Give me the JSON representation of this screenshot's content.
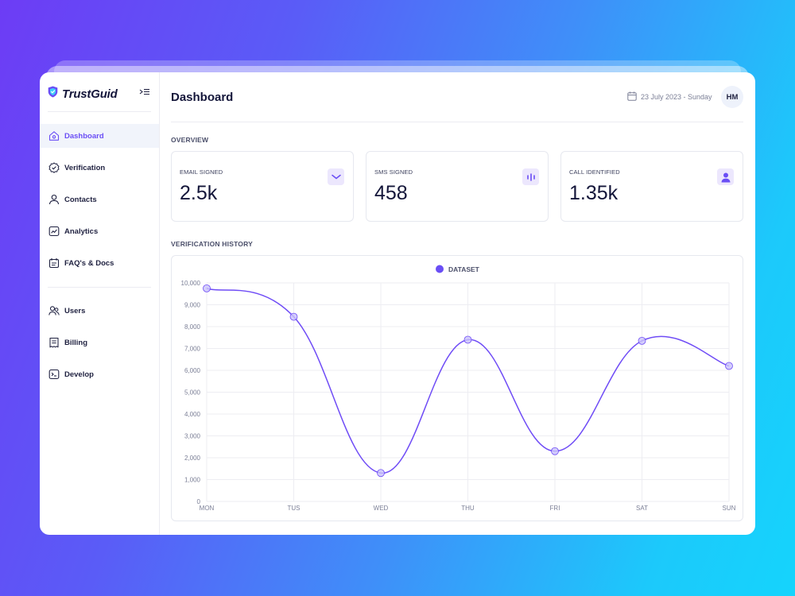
{
  "brand": {
    "name": "TrustGuid"
  },
  "sidebar": {
    "items": [
      {
        "label": "Dashboard",
        "icon": "home-icon",
        "active": true
      },
      {
        "label": "Verification",
        "icon": "verified-badge-icon",
        "active": false
      },
      {
        "label": "Contacts",
        "icon": "user-icon",
        "active": false
      },
      {
        "label": "Analytics",
        "icon": "chart-icon",
        "active": false
      },
      {
        "label": "FAQ's & Docs",
        "icon": "docs-icon",
        "active": false
      }
    ],
    "items2": [
      {
        "label": "Users",
        "icon": "users-icon"
      },
      {
        "label": "Billing",
        "icon": "receipt-icon"
      },
      {
        "label": "Develop",
        "icon": "terminal-icon"
      }
    ]
  },
  "header": {
    "title": "Dashboard",
    "date": "23 July 2023 - Sunday",
    "avatar": "HM"
  },
  "overview": {
    "label": "OVERVIEW",
    "cards": [
      {
        "title": "EMAIL SIGNED",
        "value": "2.5k",
        "icon": "email-icon"
      },
      {
        "title": "SMS SIGNED",
        "value": "458",
        "icon": "sms-icon"
      },
      {
        "title": "CALL IDENTIFIED",
        "value": "1.35k",
        "icon": "person-icon"
      }
    ]
  },
  "history": {
    "label": "VERIFICATION HISTORY"
  },
  "colors": {
    "accent": "#6a4ef5",
    "line": "#6f4cf6",
    "point_fill": "#c9c2fb"
  },
  "chart_data": {
    "type": "line",
    "categories": [
      "MON",
      "TUS",
      "WED",
      "THU",
      "FRI",
      "SAT",
      "SUN"
    ],
    "series": [
      {
        "name": "DATASET",
        "values": [
          9750,
          8450,
          1300,
          7400,
          2300,
          7350,
          6200
        ]
      }
    ],
    "ylim": [
      0,
      10000
    ],
    "yticks": [
      0,
      1000,
      2000,
      3000,
      4000,
      5000,
      6000,
      7000,
      8000,
      9000,
      10000
    ],
    "ytick_labels": [
      "0",
      "1,000",
      "2,000",
      "3,000",
      "4,000",
      "5,000",
      "6,000",
      "7,000",
      "8,000",
      "9,000",
      "10,000"
    ],
    "grid": true,
    "legend": "top-center",
    "smooth": true
  }
}
